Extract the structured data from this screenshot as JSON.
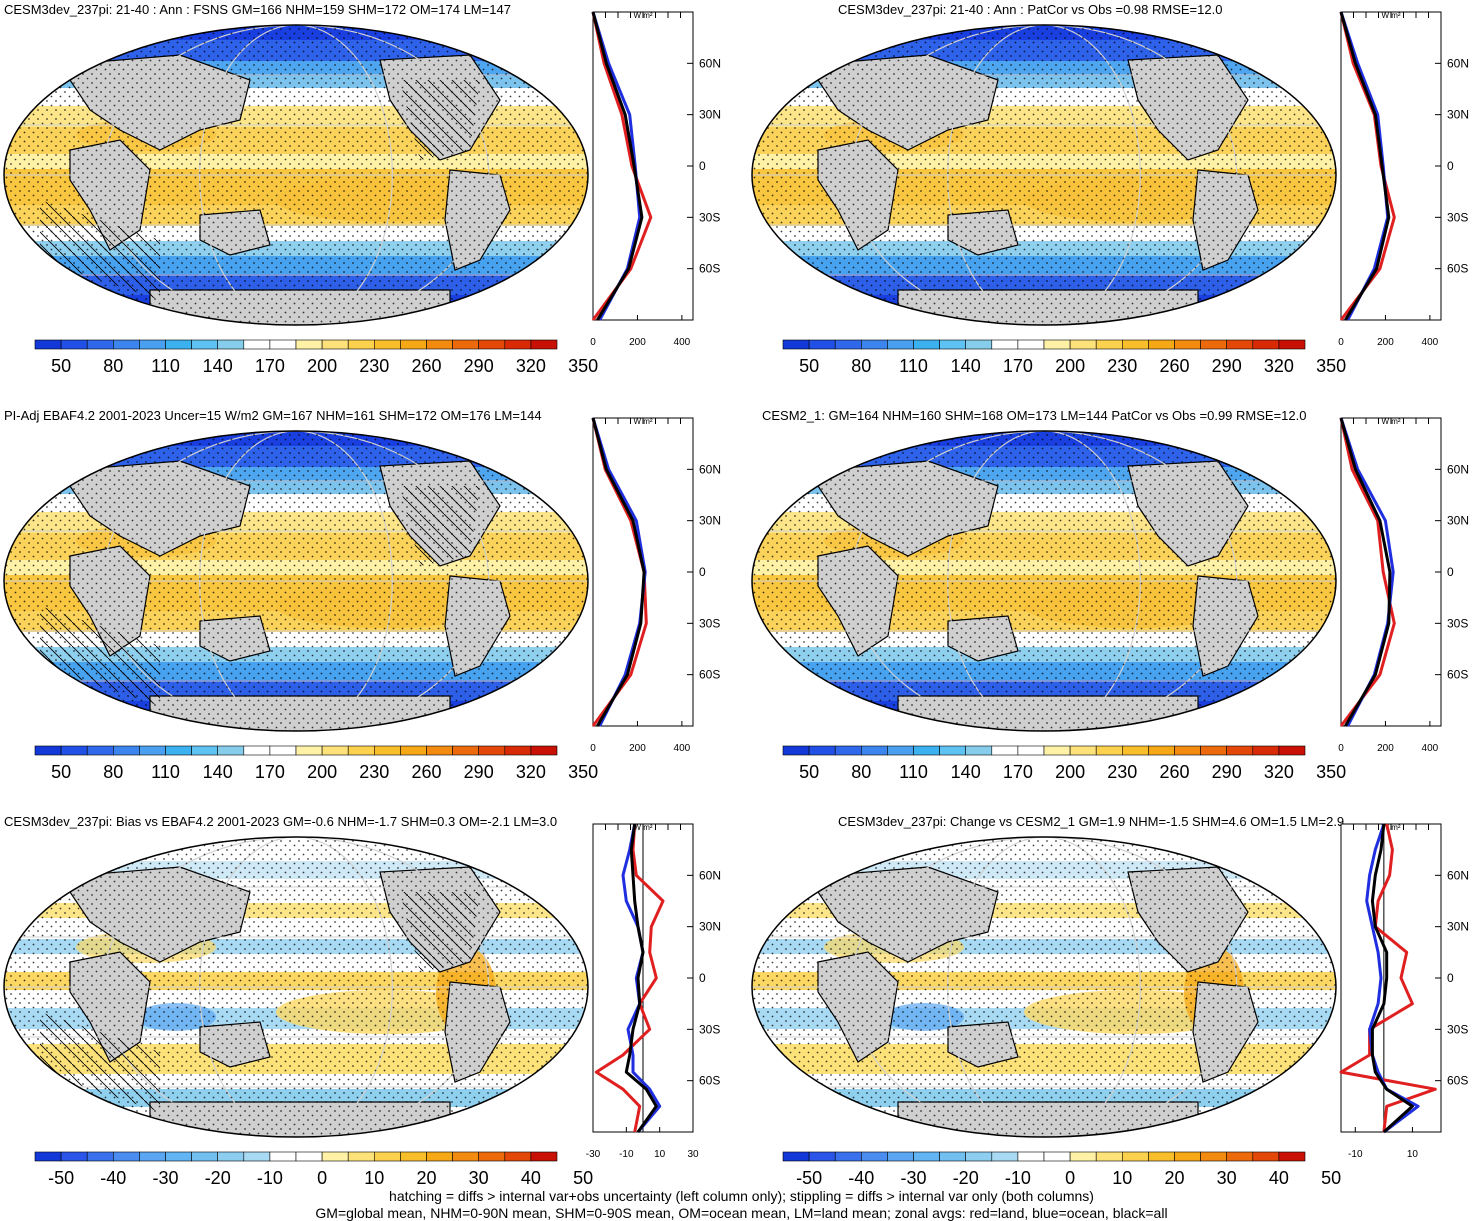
{
  "figure": {
    "footer": [
      "hatching = diffs > internal var+obs uncertainty (left column only); stippling = diffs > internal var only (both columns)",
      "GM=global mean, NHM=0-90N mean, SHM=0-90S mean, OM=ocean mean, LM=land mean; zonal avgs: red=land, blue=ocean, black=all"
    ],
    "colors": {
      "land": "#e02020",
      "ocean": "#1f2fe0",
      "all": "#000000",
      "mask": "#cfcfcf"
    }
  },
  "chart_data": [
    {
      "type": "heatmap",
      "title": "CESM3dev_237pi: 21-40 : Ann : FSNS GM=166 NHM=159 SHM=172 OM=174 LM=147",
      "field": "abs",
      "hatching": true,
      "stippling": true,
      "colorbar": {
        "ticks": [
          "50",
          "80",
          "110",
          "140",
          "170",
          "200",
          "230",
          "260",
          "290",
          "320",
          "350"
        ]
      },
      "zonal": {
        "unit": "W m²",
        "xticks": [
          "0",
          "200",
          "400"
        ],
        "xlim": [
          0,
          450
        ],
        "zero_line": false,
        "lat": [
          90,
          60,
          30,
          0,
          -30,
          -60,
          -90
        ],
        "lat_labels": [
          "60N",
          "30N",
          "0",
          "30S",
          "60S"
        ],
        "land": [
          0,
          50,
          130,
          175,
          260,
          170,
          0
        ],
        "ocean": [
          0,
          70,
          165,
          190,
          210,
          155,
          30
        ],
        "all": [
          0,
          60,
          145,
          185,
          220,
          160,
          20
        ]
      }
    },
    {
      "type": "heatmap",
      "title": "CESM3dev_237pi: 21-40 : Ann : PatCor vs Obs =0.98 RMSE=12.0",
      "field": "abs",
      "hatching": false,
      "stippling": true,
      "colorbar": {
        "ticks": [
          "50",
          "80",
          "110",
          "140",
          "170",
          "200",
          "230",
          "260",
          "290",
          "320",
          "350"
        ]
      },
      "zonal": {
        "unit": "W m²",
        "xticks": [
          "0",
          "200",
          "400"
        ],
        "xlim": [
          0,
          450
        ],
        "zero_line": false,
        "lat": [
          90,
          60,
          30,
          0,
          -30,
          -60,
          -90
        ],
        "lat_labels": [
          "60N",
          "30N",
          "0",
          "30S",
          "60S"
        ],
        "land": [
          0,
          55,
          150,
          180,
          240,
          175,
          0
        ],
        "ocean": [
          0,
          75,
          165,
          190,
          210,
          150,
          30
        ],
        "all": [
          0,
          65,
          155,
          185,
          215,
          160,
          20
        ]
      }
    },
    {
      "type": "heatmap",
      "title": "PI-Adj EBAF4.2 2001-2023 Uncer=15 W/m2 GM=167 NHM=161 SHM=172 OM=176 LM=144",
      "field": "abs",
      "hatching": true,
      "stippling": true,
      "colorbar": {
        "ticks": [
          "50",
          "80",
          "110",
          "140",
          "170",
          "200",
          "230",
          "260",
          "290",
          "320",
          "350"
        ]
      },
      "zonal": {
        "unit": "W m²",
        "xticks": [
          "0",
          "200",
          "400"
        ],
        "xlim": [
          0,
          450
        ],
        "zero_line": false,
        "lat": [
          90,
          60,
          30,
          0,
          -30,
          -60,
          -90
        ],
        "lat_labels": [
          "60N",
          "30N",
          "0",
          "30S",
          "60S"
        ],
        "land": [
          0,
          55,
          170,
          230,
          240,
          170,
          0
        ],
        "ocean": [
          0,
          70,
          195,
          235,
          210,
          145,
          30
        ],
        "all": [
          0,
          60,
          180,
          230,
          215,
          155,
          20
        ]
      }
    },
    {
      "type": "heatmap",
      "title": "CESM2_1: GM=164 NHM=160 SHM=168 OM=173 LM=144 PatCor vs Obs =0.99 RMSE=12.0",
      "field": "abs",
      "hatching": false,
      "stippling": true,
      "colorbar": {
        "ticks": [
          "50",
          "80",
          "110",
          "140",
          "170",
          "200",
          "230",
          "260",
          "290",
          "320",
          "350"
        ]
      },
      "zonal": {
        "unit": "W m²",
        "xticks": [
          "0",
          "200",
          "400"
        ],
        "xlim": [
          0,
          450
        ],
        "zero_line": false,
        "lat": [
          90,
          60,
          30,
          0,
          -30,
          -60,
          -90
        ],
        "lat_labels": [
          "60N",
          "30N",
          "0",
          "30S",
          "60S"
        ],
        "land": [
          0,
          50,
          165,
          190,
          240,
          175,
          0
        ],
        "ocean": [
          0,
          75,
          200,
          235,
          210,
          150,
          30
        ],
        "all": [
          0,
          65,
          175,
          220,
          215,
          155,
          20
        ]
      }
    },
    {
      "type": "heatmap",
      "title": "CESM3dev_237pi: Bias vs EBAF4.2 2001-2023 GM=-0.6 NHM=-1.7 SHM=0.3 OM=-2.1 LM=3.0",
      "field": "diff",
      "hatching": true,
      "stippling": true,
      "colorbar": {
        "ticks": [
          "-50",
          "-40",
          "-30",
          "-20",
          "-10",
          "0",
          "10",
          "20",
          "30",
          "40",
          "50"
        ]
      },
      "zonal": {
        "unit": "W m²",
        "xticks": [
          "-30",
          "-10",
          "10",
          "30"
        ],
        "xlim": [
          -30,
          30
        ],
        "zero_line": true,
        "lat": [
          90,
          75,
          60,
          45,
          30,
          15,
          0,
          -15,
          -30,
          -45,
          -55,
          -65,
          -75,
          -90
        ],
        "lat_labels": [
          "60N",
          "30N",
          "0",
          "30S",
          "60S"
        ],
        "land": [
          -5,
          -6,
          -4,
          12,
          5,
          4,
          8,
          -2,
          4,
          -12,
          -28,
          -12,
          -2,
          -5
        ],
        "ocean": [
          -5,
          -8,
          -12,
          -10,
          -3,
          0,
          -4,
          -2,
          -9,
          -6,
          -6,
          4,
          10,
          -3
        ],
        "all": [
          -5,
          -7,
          -6,
          -5,
          -3,
          0,
          -3,
          -2,
          -6,
          -8,
          -10,
          2,
          8,
          -3
        ]
      }
    },
    {
      "type": "heatmap",
      "title": "CESM3dev_237pi: Change vs CESM2_1 GM=1.9 NHM=-1.5 SHM=4.6 OM=1.5 LM=2.9",
      "field": "diff",
      "hatching": false,
      "stippling": true,
      "colorbar": {
        "ticks": [
          "-50",
          "-40",
          "-30",
          "-20",
          "-10",
          "0",
          "10",
          "20",
          "30",
          "40",
          "50"
        ]
      },
      "zonal": {
        "unit": "W m²",
        "xticks": [
          "-10",
          "10"
        ],
        "xlim": [
          -15,
          20
        ],
        "zero_line": true,
        "lat": [
          90,
          75,
          60,
          45,
          30,
          15,
          0,
          -15,
          -30,
          -45,
          -55,
          -65,
          -75,
          -90
        ],
        "lat_labels": [
          "60N",
          "30N",
          "0",
          "30S",
          "60S"
        ],
        "land": [
          1,
          3,
          2,
          -2,
          -3,
          8,
          6,
          10,
          -5,
          -5,
          -15,
          18,
          1,
          0
        ],
        "ocean": [
          0,
          -3,
          -5,
          -6,
          -4,
          -2,
          -1,
          -2,
          -5,
          -4,
          -2,
          1,
          12,
          0
        ],
        "all": [
          0,
          -1,
          -3,
          -4,
          -3,
          1,
          1,
          0,
          -4,
          -4,
          -3,
          1,
          10,
          0
        ]
      }
    }
  ]
}
